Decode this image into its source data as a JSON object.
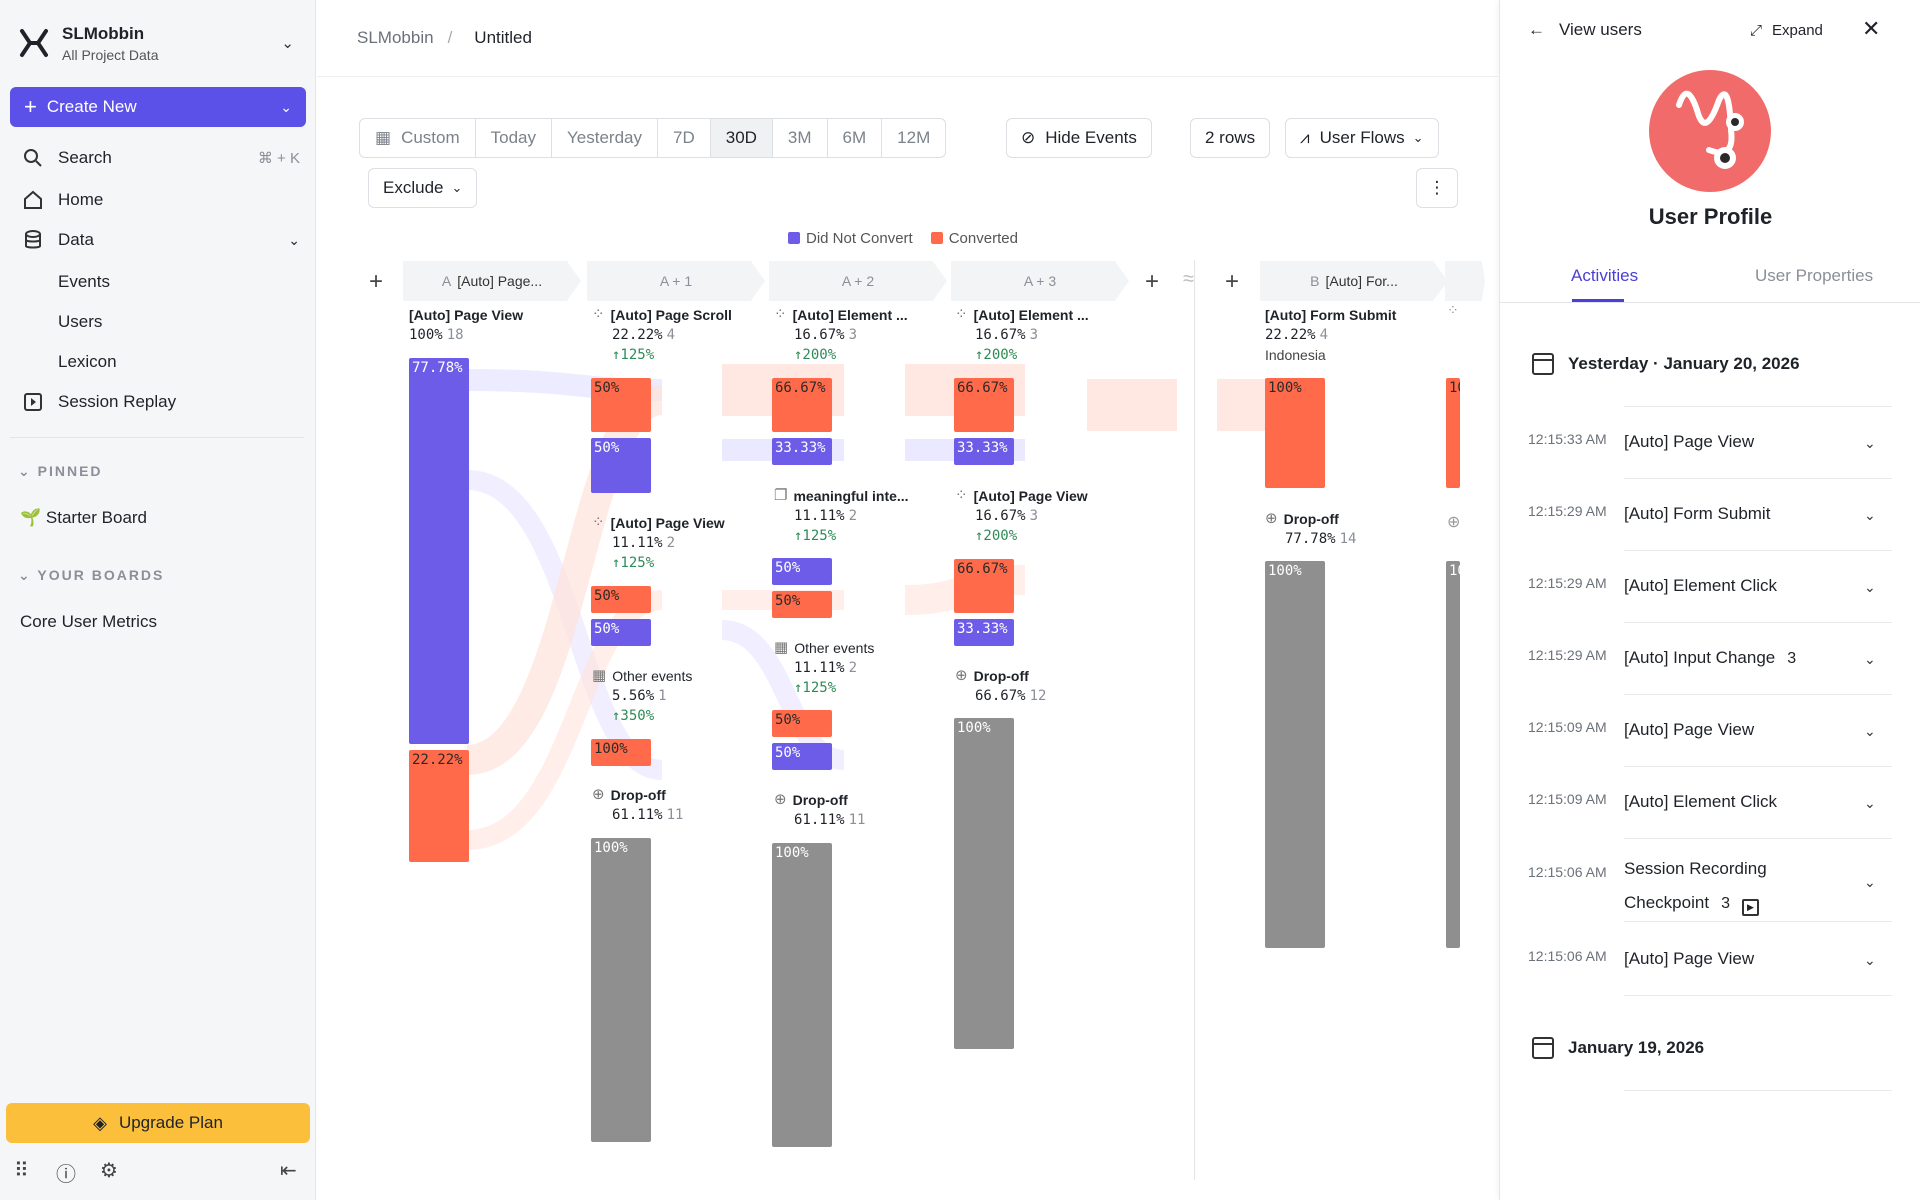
{
  "sidebar": {
    "org_name": "SLMobbin",
    "org_sub": "All Project Data",
    "create_label": "Create New",
    "search_label": "Search",
    "search_shortcut": "⌘ + K",
    "home_label": "Home",
    "data_label": "Data",
    "data_sub": [
      "Events",
      "Users",
      "Lexicon"
    ],
    "replay_label": "Session Replay",
    "pinned_label": "PINNED",
    "pinned_item": "Starter Board",
    "boards_label": "YOUR BOARDS",
    "boards_item": "Core User Metrics",
    "upgrade_label": "Upgrade Plan"
  },
  "breadcrumb": {
    "root": "SLMobbin",
    "current": "Untitled"
  },
  "toolbar": {
    "ranges": [
      "Custom",
      "Today",
      "Yesterday",
      "7D",
      "30D",
      "3M",
      "6M",
      "12M"
    ],
    "selected_range": "30D",
    "hide_events": "Hide Events",
    "rows": "2 rows",
    "view": "User Flows",
    "exclude": "Exclude"
  },
  "colors": {
    "did_not_convert": "#6c5ce7",
    "converted": "#ff6b4a",
    "dropoff": "#8f8f8f",
    "accent": "#5b50e8"
  },
  "legend": {
    "a": "Did Not Convert",
    "b": "Converted"
  },
  "columns": {
    "c0": {
      "chip_prefix": "A",
      "chip": "[Auto] Page...",
      "event": "[Auto] Page View",
      "pct": "100%",
      "count": "18",
      "bar1": "77.78%",
      "bar2": "22.22%"
    },
    "c1": {
      "chip_prefix": "A + 1",
      "e1": {
        "event": "[Auto] Page Scroll",
        "pct": "22.22%",
        "count": "4",
        "delta": "↑125%",
        "bar1": "50%",
        "bar2": "50%"
      },
      "e2": {
        "event": "[Auto] Page View",
        "pct": "11.11%",
        "count": "2",
        "delta": "↑125%",
        "bar1": "50%",
        "bar2": "50%"
      },
      "e3": {
        "event": "Other events",
        "pct": "5.56%",
        "count": "1",
        "delta": "↑350%",
        "bar1": "100%"
      },
      "drop": {
        "event": "Drop-off",
        "pct": "61.11%",
        "count": "11",
        "bar": "100%"
      }
    },
    "c2": {
      "chip_prefix": "A + 2",
      "e1": {
        "event": "[Auto] Element ...",
        "pct": "16.67%",
        "count": "3",
        "delta": "↑200%",
        "bar1": "66.67%",
        "bar2": "33.33%"
      },
      "e2": {
        "event": "meaningful inte...",
        "pct": "11.11%",
        "count": "2",
        "delta": "↑125%",
        "bar1": "50%",
        "bar2": "50%"
      },
      "e3": {
        "event": "Other events",
        "pct": "11.11%",
        "count": "2",
        "delta": "↑125%",
        "bar1": "50%",
        "bar2": "50%"
      },
      "drop": {
        "event": "Drop-off",
        "pct": "61.11%",
        "count": "11",
        "bar": "100%"
      }
    },
    "c3": {
      "chip_prefix": "A + 3",
      "e1": {
        "event": "[Auto] Element ...",
        "pct": "16.67%",
        "count": "3",
        "delta": "↑200%",
        "bar1": "66.67%",
        "bar2": "33.33%"
      },
      "e2": {
        "event": "[Auto] Page View",
        "pct": "16.67%",
        "count": "3",
        "delta": "↑200%",
        "bar1": "66.67%",
        "bar2": "33.33%"
      },
      "drop": {
        "event": "Drop-off",
        "pct": "66.67%",
        "count": "12",
        "bar": "100%"
      }
    },
    "c4": {
      "chip_prefix": "B",
      "chip": "[Auto] For...",
      "event": "[Auto] Form Submit",
      "pct": "22.22%",
      "count": "4",
      "geo": "Indonesia",
      "bar1": "100%",
      "drop": {
        "event": "Drop-off",
        "pct": "77.78%",
        "count": "14",
        "bar": "100%"
      }
    },
    "c5": {
      "bar1": "10",
      "bar2": "10"
    }
  },
  "panel": {
    "title": "View users",
    "expand": "Expand",
    "name": "User Profile",
    "tab_activities": "Activities",
    "tab_properties": "User Properties",
    "day1": "Yesterday · January 20, 2026",
    "day2": "January 19, 2026",
    "activities": [
      {
        "time": "12:15:33 AM",
        "name": "[Auto] Page View",
        "count": ""
      },
      {
        "time": "12:15:29 AM",
        "name": "[Auto] Form Submit",
        "count": ""
      },
      {
        "time": "12:15:29 AM",
        "name": "[Auto] Element Click",
        "count": ""
      },
      {
        "time": "12:15:29 AM",
        "name": "[Auto] Input Change",
        "count": "3"
      },
      {
        "time": "12:15:09 AM",
        "name": "[Auto] Page View",
        "count": ""
      },
      {
        "time": "12:15:09 AM",
        "name": "[Auto] Element Click",
        "count": ""
      },
      {
        "time": "12:15:06 AM",
        "name": "Session Recording",
        "name2": "Checkpoint",
        "count": "3"
      },
      {
        "time": "12:15:06 AM",
        "name": "[Auto] Page View",
        "count": ""
      }
    ]
  }
}
